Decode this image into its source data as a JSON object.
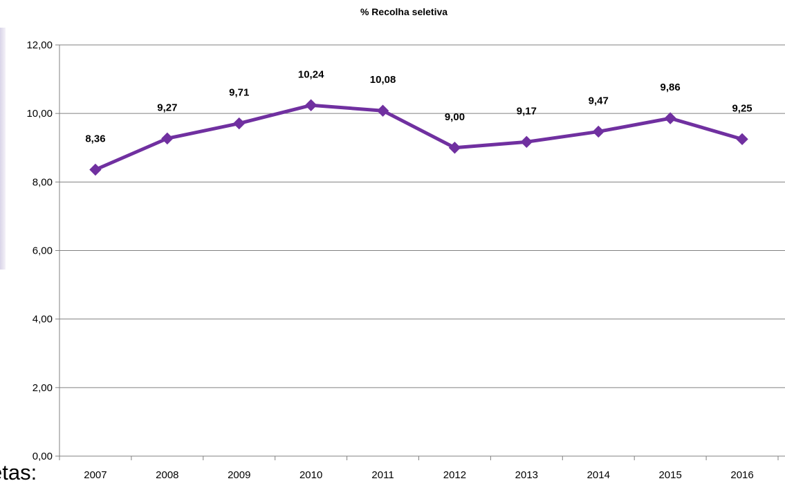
{
  "page": {
    "cropped_text": "etas:"
  },
  "chart_data": {
    "type": "line",
    "title": "% Recolha seletiva",
    "xlabel": "",
    "ylabel": "",
    "categories": [
      "2007",
      "2008",
      "2009",
      "2010",
      "2011",
      "2012",
      "2013",
      "2014",
      "2015",
      "2016"
    ],
    "series": [
      {
        "values": [
          8.36,
          9.27,
          9.71,
          10.24,
          10.08,
          9.0,
          9.17,
          9.47,
          9.86,
          9.25
        ],
        "data_labels": [
          "8,36",
          "9,27",
          "9,71",
          "10,24",
          "10,08",
          "9,00",
          "9,17",
          "9,47",
          "9,86",
          "9,25"
        ],
        "color": "#7030a0",
        "marker": "diamond"
      }
    ],
    "ylim": [
      0,
      12
    ],
    "yticks": [
      0,
      2,
      4,
      6,
      8,
      10,
      12
    ],
    "ytick_labels": [
      "0,00",
      "2,00",
      "4,00",
      "6,00",
      "8,00",
      "10,00",
      "12,00"
    ],
    "grid": true,
    "gridline_color": "#808080",
    "legend": "none"
  }
}
